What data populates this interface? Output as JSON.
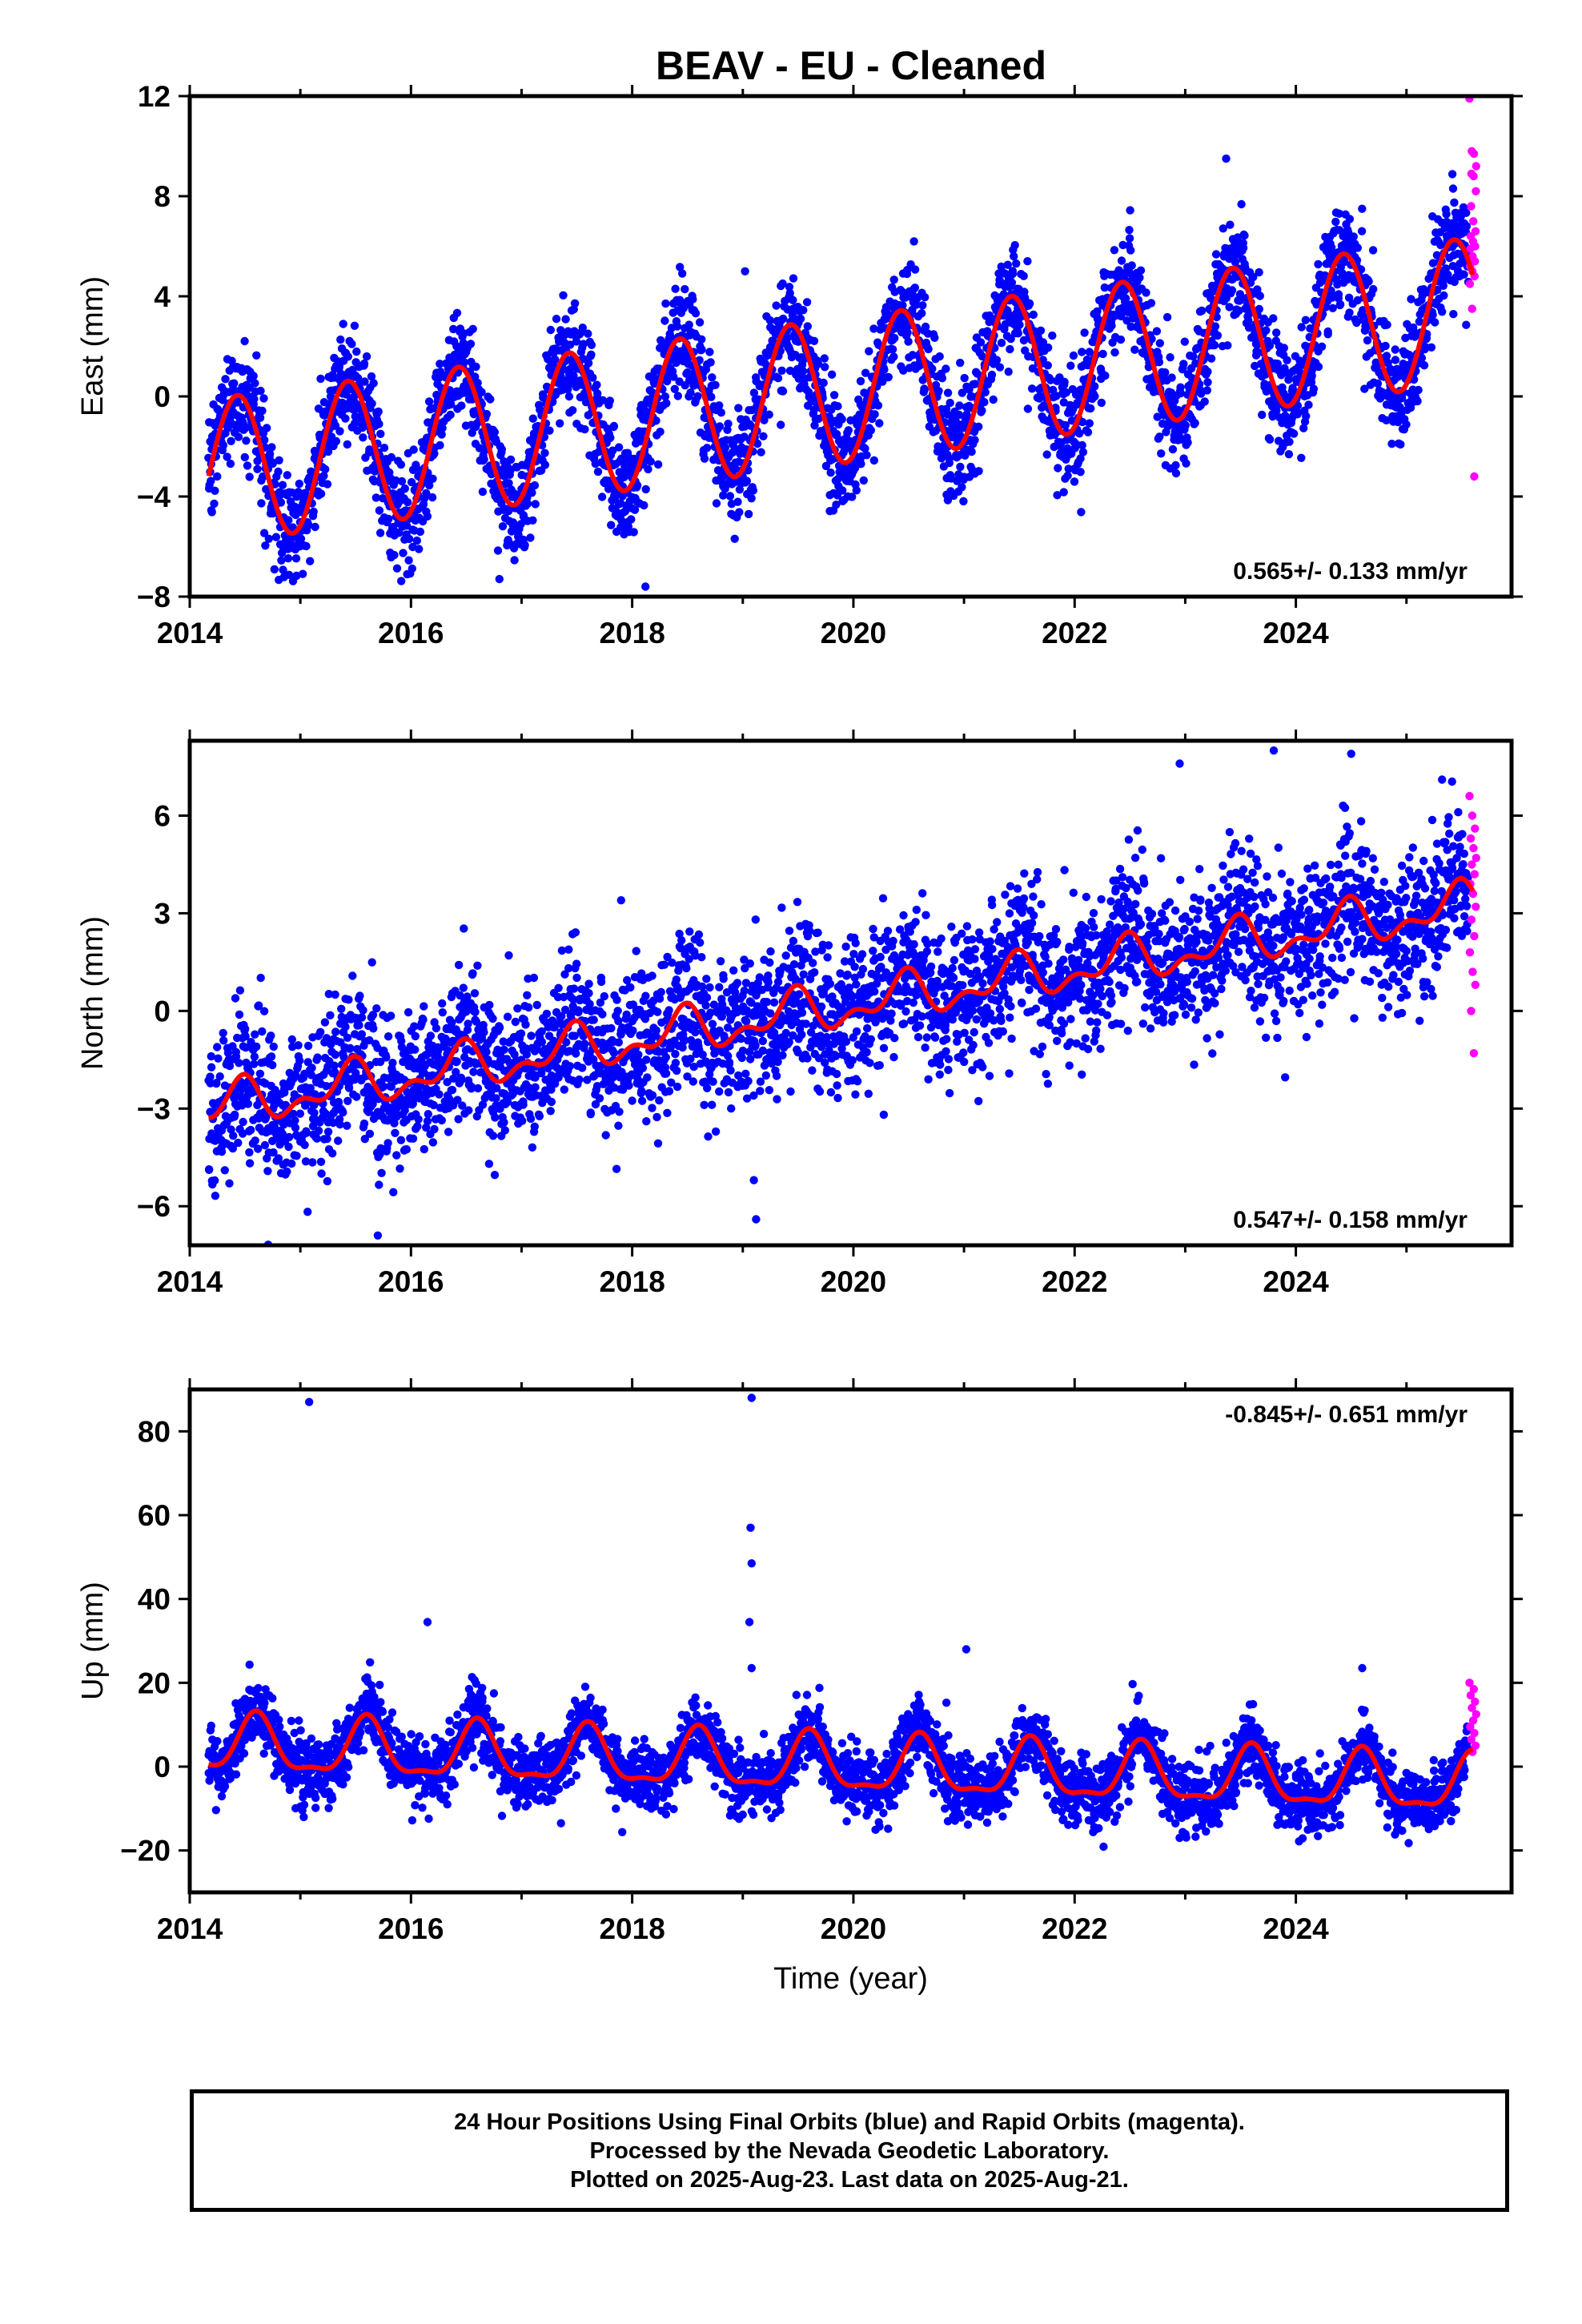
{
  "title": "BEAV  - EU - Cleaned",
  "colors": {
    "final": "#0000ff",
    "rapid": "#ff00ff",
    "fit": "#ff0000",
    "frame": "#000000"
  },
  "chart_data": [
    {
      "type": "scatter",
      "component": "East",
      "ylabel": "East (mm)",
      "xlabel": "",
      "xlim": [
        2014.0,
        2025.95
      ],
      "ylim": [
        -8,
        12
      ],
      "xticks": [
        2014,
        2016,
        2018,
        2020,
        2022,
        2024
      ],
      "xtick_labels": [
        "2014",
        "2016",
        "2018",
        "2020",
        "2022",
        "2024"
      ],
      "yticks": [
        -8,
        -4,
        0,
        4,
        8,
        12
      ],
      "ytick_labels": [
        "−8",
        "−4",
        "0",
        "4",
        "8",
        "12"
      ],
      "rate_label": "0.565+/- 0.133 mm/yr",
      "rate_position": "bottom-right",
      "series": [
        {
          "role": "final",
          "model": {
            "start": 2014.17,
            "end": 2025.56,
            "offset": -3.0,
            "rate": 0.565,
            "amplitude": 2.9,
            "peak_phase": 0.43,
            "semi_amplitude": 0.0,
            "semi_phase": 0.0,
            "scatter_sd": 1.1,
            "points_per_year": 320
          },
          "outliers": [
            [
              2019.02,
              5.0
            ],
            [
              2023.37,
              9.5
            ],
            [
              2018.12,
              -7.6
            ],
            [
              2016.8,
              -7.3
            ]
          ]
        },
        {
          "role": "rapid",
          "x_range": [
            2025.57,
            2025.63
          ],
          "values": [
            11.9,
            9.8,
            9.7,
            9.2,
            8.9,
            8.8,
            8.2,
            7.6,
            7.0,
            6.6,
            6.4,
            6.2,
            6.0,
            5.9,
            5.6,
            5.4,
            5.2,
            5.0,
            4.8,
            4.5,
            3.5,
            -3.2
          ]
        },
        {
          "role": "fit",
          "start": 2014.17,
          "end": 2025.6
        }
      ]
    },
    {
      "type": "scatter",
      "component": "North",
      "ylabel": "North (mm)",
      "xlabel": "",
      "xlim": [
        2014.0,
        2025.95
      ],
      "ylim": [
        -7.2,
        8.3
      ],
      "xticks": [
        2014,
        2016,
        2018,
        2020,
        2022,
        2024
      ],
      "xtick_labels": [
        "2014",
        "2016",
        "2018",
        "2020",
        "2022",
        "2024"
      ],
      "yticks": [
        -6,
        -3,
        0,
        3,
        6
      ],
      "ytick_labels": [
        "−6",
        "−3",
        "0",
        "3",
        "6"
      ],
      "rate_label": "0.547+/- 0.158 mm/yr",
      "rate_position": "bottom-right",
      "series": [
        {
          "role": "final",
          "model": {
            "start": 2014.17,
            "end": 2025.56,
            "offset": -3.0,
            "rate": 0.547,
            "amplitude": 0.55,
            "peak_phase": 0.45,
            "semi_amplitude": 0.35,
            "semi_phase": 0.0,
            "scatter_sd": 1.15,
            "points_per_year": 320
          },
          "outliers": [
            [
              2015.7,
              -6.9
            ],
            [
              2019.12,
              -6.4
            ],
            [
              2019.1,
              -5.2
            ],
            [
              2022.95,
              7.6
            ],
            [
              2023.8,
              8.0
            ],
            [
              2024.5,
              7.9
            ],
            [
              2017.9,
              3.4
            ]
          ]
        },
        {
          "role": "rapid",
          "x_range": [
            2025.57,
            2025.63
          ],
          "values": [
            6.6,
            6.0,
            5.6,
            5.3,
            5.0,
            4.7,
            4.5,
            4.2,
            3.9,
            3.6,
            3.2,
            2.8,
            2.3,
            1.8,
            1.2,
            0.8,
            0.0,
            -1.3
          ]
        },
        {
          "role": "fit",
          "start": 2014.17,
          "end": 2025.6
        }
      ]
    },
    {
      "type": "scatter",
      "component": "Up",
      "ylabel": "Up (mm)",
      "xlabel": "Time (year)",
      "xlim": [
        2014.0,
        2025.95
      ],
      "ylim": [
        -30,
        90
      ],
      "xticks": [
        2014,
        2016,
        2018,
        2020,
        2022,
        2024
      ],
      "xtick_labels": [
        "2014",
        "2016",
        "2018",
        "2020",
        "2022",
        "2024"
      ],
      "yticks": [
        -20,
        0,
        20,
        40,
        60,
        80
      ],
      "ytick_labels": [
        "−20",
        "0",
        "20",
        "40",
        "60",
        "80"
      ],
      "rate_label": "-0.845+/- 0.651 mm/yr",
      "rate_position": "top-right",
      "series": [
        {
          "role": "final",
          "model": {
            "start": 2014.17,
            "end": 2025.56,
            "offset": 5.0,
            "rate": -0.845,
            "amplitude": 6.5,
            "peak_phase": 0.6,
            "semi_amplitude": 2.2,
            "semi_phase": 0.1,
            "scatter_sd": 4.0,
            "points_per_year": 320
          },
          "outliers": [
            [
              2015.08,
              87.0
            ],
            [
              2019.08,
              88.0
            ],
            [
              2019.07,
              57.0
            ],
            [
              2019.08,
              48.5
            ],
            [
              2019.06,
              34.5
            ],
            [
              2019.08,
              23.5
            ],
            [
              2016.15,
              34.5
            ],
            [
              2021.02,
              28.0
            ],
            [
              2024.6,
              23.5
            ]
          ]
        },
        {
          "role": "rapid",
          "x_range": [
            2025.57,
            2025.63
          ],
          "values": [
            20.0,
            18.5,
            17.0,
            15.5,
            14.0,
            12.5,
            11.0,
            9.5,
            8.0,
            6.5,
            5.0,
            3.5
          ]
        },
        {
          "role": "fit",
          "start": 2014.17,
          "end": 2025.6
        }
      ]
    }
  ],
  "footer": {
    "line1": "24 Hour Positions Using Final Orbits (blue) and Rapid Orbits (magenta).",
    "line2": "Processed by the Nevada Geodetic Laboratory.",
    "line3": "Plotted on 2025-Aug-23. Last data on 2025-Aug-21."
  }
}
